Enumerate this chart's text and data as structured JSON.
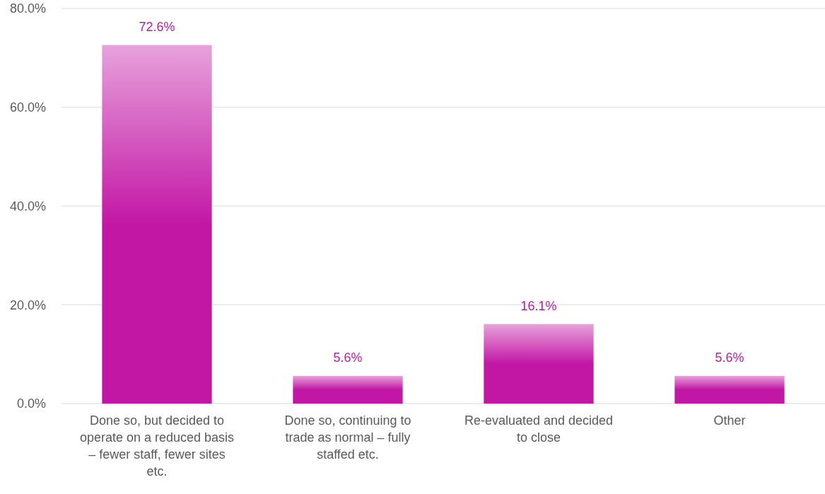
{
  "chart_data": {
    "type": "bar",
    "categories": [
      "Done so, but decided to operate on a reduced basis – fewer staff, fewer sites etc.",
      "Done so, continuing to trade as normal – fully staffed etc.",
      "Re-evaluated and decided to close",
      "Other"
    ],
    "values": [
      72.6,
      5.6,
      16.1,
      5.6
    ],
    "value_labels": [
      "72.6%",
      "5.6%",
      "16.1%",
      "5.6%"
    ],
    "color": "#c217a5",
    "ylim": [
      0,
      80
    ],
    "yticks": [
      {
        "value": 0,
        "label": "0.0%"
      },
      {
        "value": 20,
        "label": "20.0%"
      },
      {
        "value": 40,
        "label": "40.0%"
      },
      {
        "value": 60,
        "label": "60.0%"
      },
      {
        "value": 80,
        "label": "80.0%"
      }
    ],
    "grid": "y"
  }
}
